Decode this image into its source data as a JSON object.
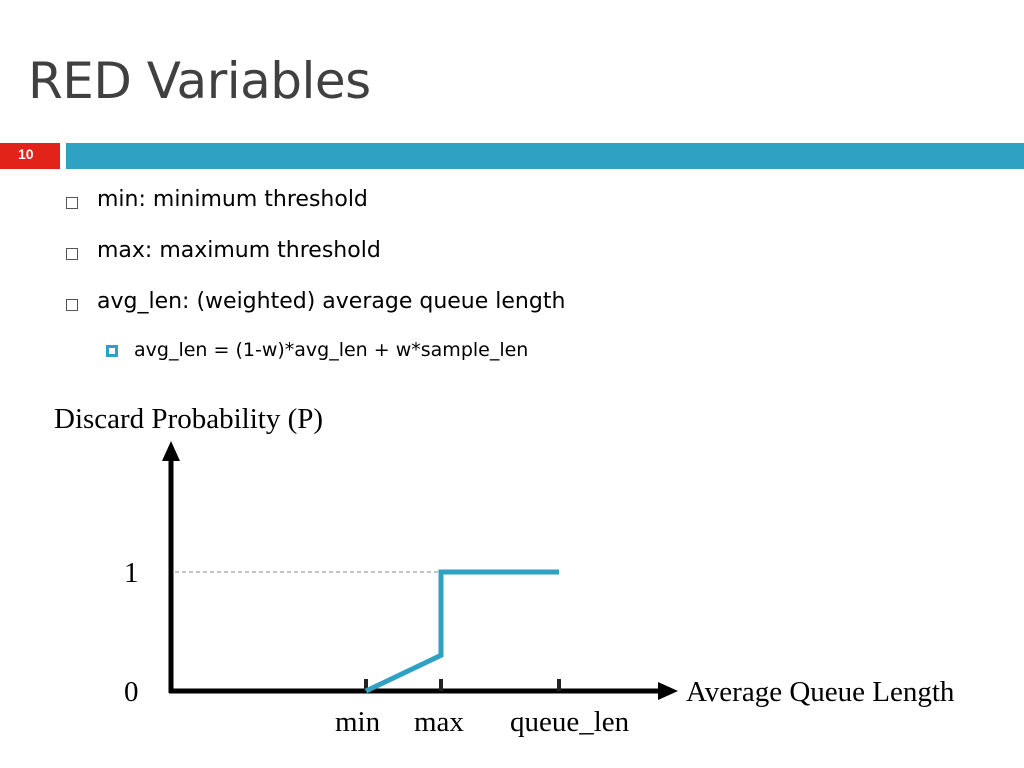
{
  "slide": {
    "title": "RED Variables",
    "number": "10",
    "colors": {
      "accent_red": "#e2231a",
      "accent_blue": "#2fa2c3",
      "title_gray": "#404040"
    }
  },
  "bullets": [
    {
      "text": "min: minimum threshold"
    },
    {
      "text": "max: maximum threshold"
    },
    {
      "text": "avg_len: (weighted) average queue length"
    }
  ],
  "sub_bullets": [
    {
      "text": "avg_len = (1-w)*avg_len + w*sample_len"
    }
  ],
  "chart_data": {
    "type": "line",
    "ylabel": "Discard Probability (P)",
    "xlabel": "Average Queue Length",
    "y_ticks": [
      "0",
      "1"
    ],
    "x_ticks": [
      "min",
      "max",
      "queue_len"
    ],
    "grid": false,
    "series": [
      {
        "color": "#2fa2c3",
        "points": [
          {
            "x": "min",
            "y": 0
          },
          {
            "x": "max",
            "y": 0.3
          },
          {
            "x": "max",
            "y": 1
          },
          {
            "x": "queue_len",
            "y": 1
          }
        ]
      }
    ],
    "reference_line": {
      "y": 1,
      "style": "dashed"
    }
  }
}
